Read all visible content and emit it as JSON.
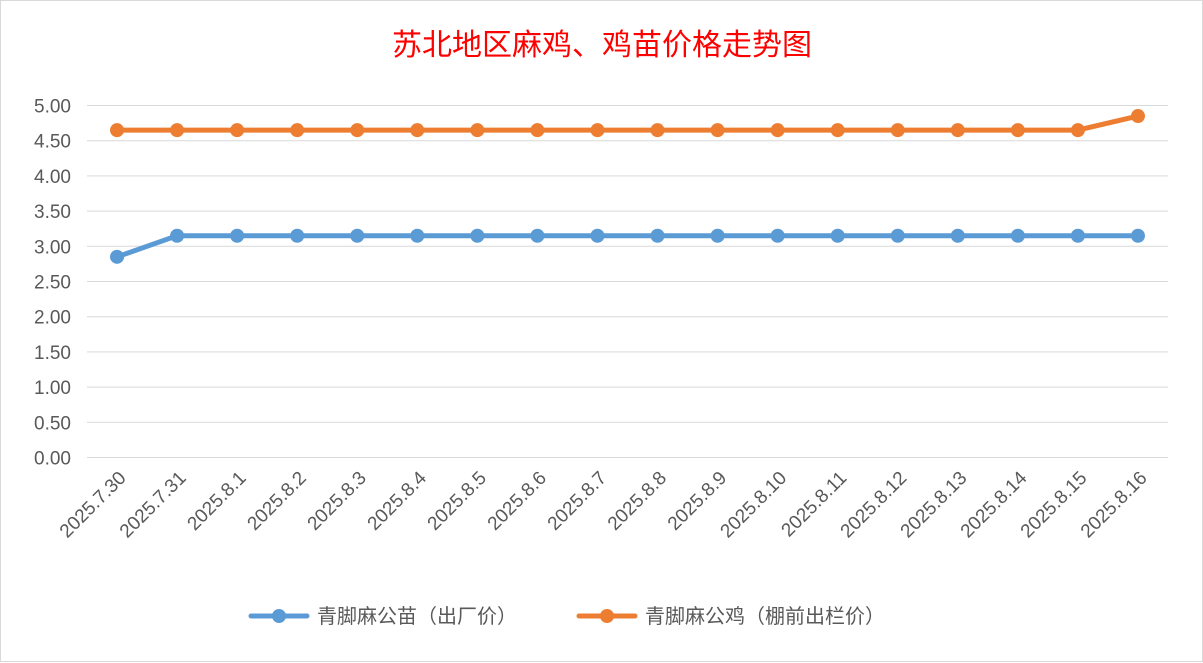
{
  "chart_data": {
    "type": "line",
    "title": "苏北地区麻鸡、鸡苗价格走势图",
    "xlabel": "",
    "ylabel": "",
    "ylim": [
      0,
      5
    ],
    "y_ticks": [
      "0.00",
      "0.50",
      "1.00",
      "1.50",
      "2.00",
      "2.50",
      "3.00",
      "3.50",
      "4.00",
      "4.50",
      "5.00"
    ],
    "grid": true,
    "legend_position": "bottom",
    "categories": [
      "2025.7.30",
      "2025.7.31",
      "2025.8.1",
      "2025.8.2",
      "2025.8.3",
      "2025.8.4",
      "2025.8.5",
      "2025.8.6",
      "2025.8.7",
      "2025.8.8",
      "2025.8.9",
      "2025.8.10",
      "2025.8.11",
      "2025.8.12",
      "2025.8.13",
      "2025.8.14",
      "2025.8.15",
      "2025.8.16"
    ],
    "series": [
      {
        "name": "青脚麻公苗（出厂价）",
        "color": "#5b9bd5",
        "values": [
          2.85,
          3.15,
          3.15,
          3.15,
          3.15,
          3.15,
          3.15,
          3.15,
          3.15,
          3.15,
          3.15,
          3.15,
          3.15,
          3.15,
          3.15,
          3.15,
          3.15,
          3.15
        ]
      },
      {
        "name": "青脚麻公鸡（棚前出栏价）",
        "color": "#ed7d31",
        "values": [
          4.65,
          4.65,
          4.65,
          4.65,
          4.65,
          4.65,
          4.65,
          4.65,
          4.65,
          4.65,
          4.65,
          4.65,
          4.65,
          4.65,
          4.65,
          4.65,
          4.65,
          4.85
        ]
      }
    ]
  }
}
